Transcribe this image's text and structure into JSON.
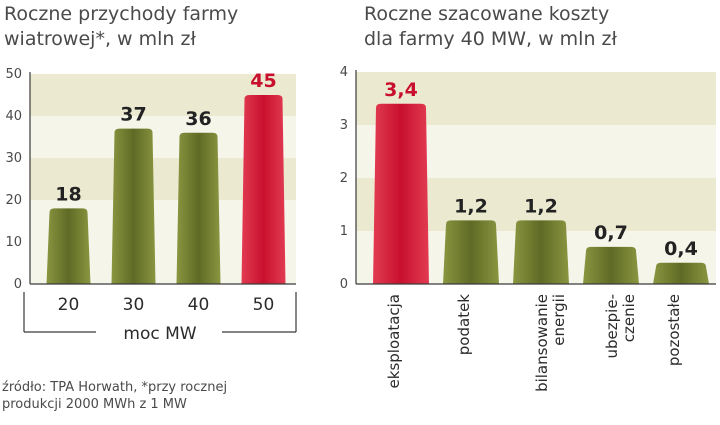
{
  "colors": {
    "bar_normal": "#5f6a25",
    "bar_normal_light": "#8a9640",
    "bar_highlight": "#c8102e",
    "band": "#ebe9d0",
    "panel": "#f6f5ea",
    "axis": "#3a3a3a",
    "value_highlight": "#c8102e",
    "value_normal": "#222222"
  },
  "source": "źródło: TPA Horwath, *przy rocznej\nprodukcji 2000 MWh z 1 MW",
  "chart_data": [
    {
      "type": "bar",
      "title": "Roczne przychody farmy\nwiatrowej*, w mln zł",
      "xlabel": "moc MW",
      "ylabel": "",
      "categories": [
        "20",
        "30",
        "40",
        "50"
      ],
      "values": [
        18,
        37,
        36,
        45
      ],
      "value_labels": [
        "18",
        "37",
        "36",
        "45"
      ],
      "highlight": [
        false,
        false,
        false,
        true
      ],
      "ylim": [
        0,
        50
      ],
      "yticks": [
        "0",
        "10",
        "20",
        "30",
        "40",
        "50"
      ],
      "bands": [
        [
          20,
          30
        ],
        [
          40,
          50
        ]
      ],
      "grid": false
    },
    {
      "type": "bar",
      "title": "Roczne szacowane koszty\ndla farmy 40 MW, w mln zł",
      "xlabel": "",
      "ylabel": "",
      "categories": [
        "eksploatacja",
        "podatek",
        "bilansowanie\nenergii",
        "ubezpie-\nczenie",
        "pozostałe"
      ],
      "values": [
        3.4,
        1.2,
        1.2,
        0.7,
        0.4
      ],
      "value_labels": [
        "3,4",
        "1,2",
        "1,2",
        "0,7",
        "0,4"
      ],
      "highlight": [
        true,
        false,
        false,
        false,
        false
      ],
      "ylim": [
        0,
        4
      ],
      "yticks": [
        "0",
        "1",
        "2",
        "3",
        "4"
      ],
      "bands": [
        [
          1,
          2
        ],
        [
          3,
          4
        ]
      ],
      "grid": false
    }
  ]
}
